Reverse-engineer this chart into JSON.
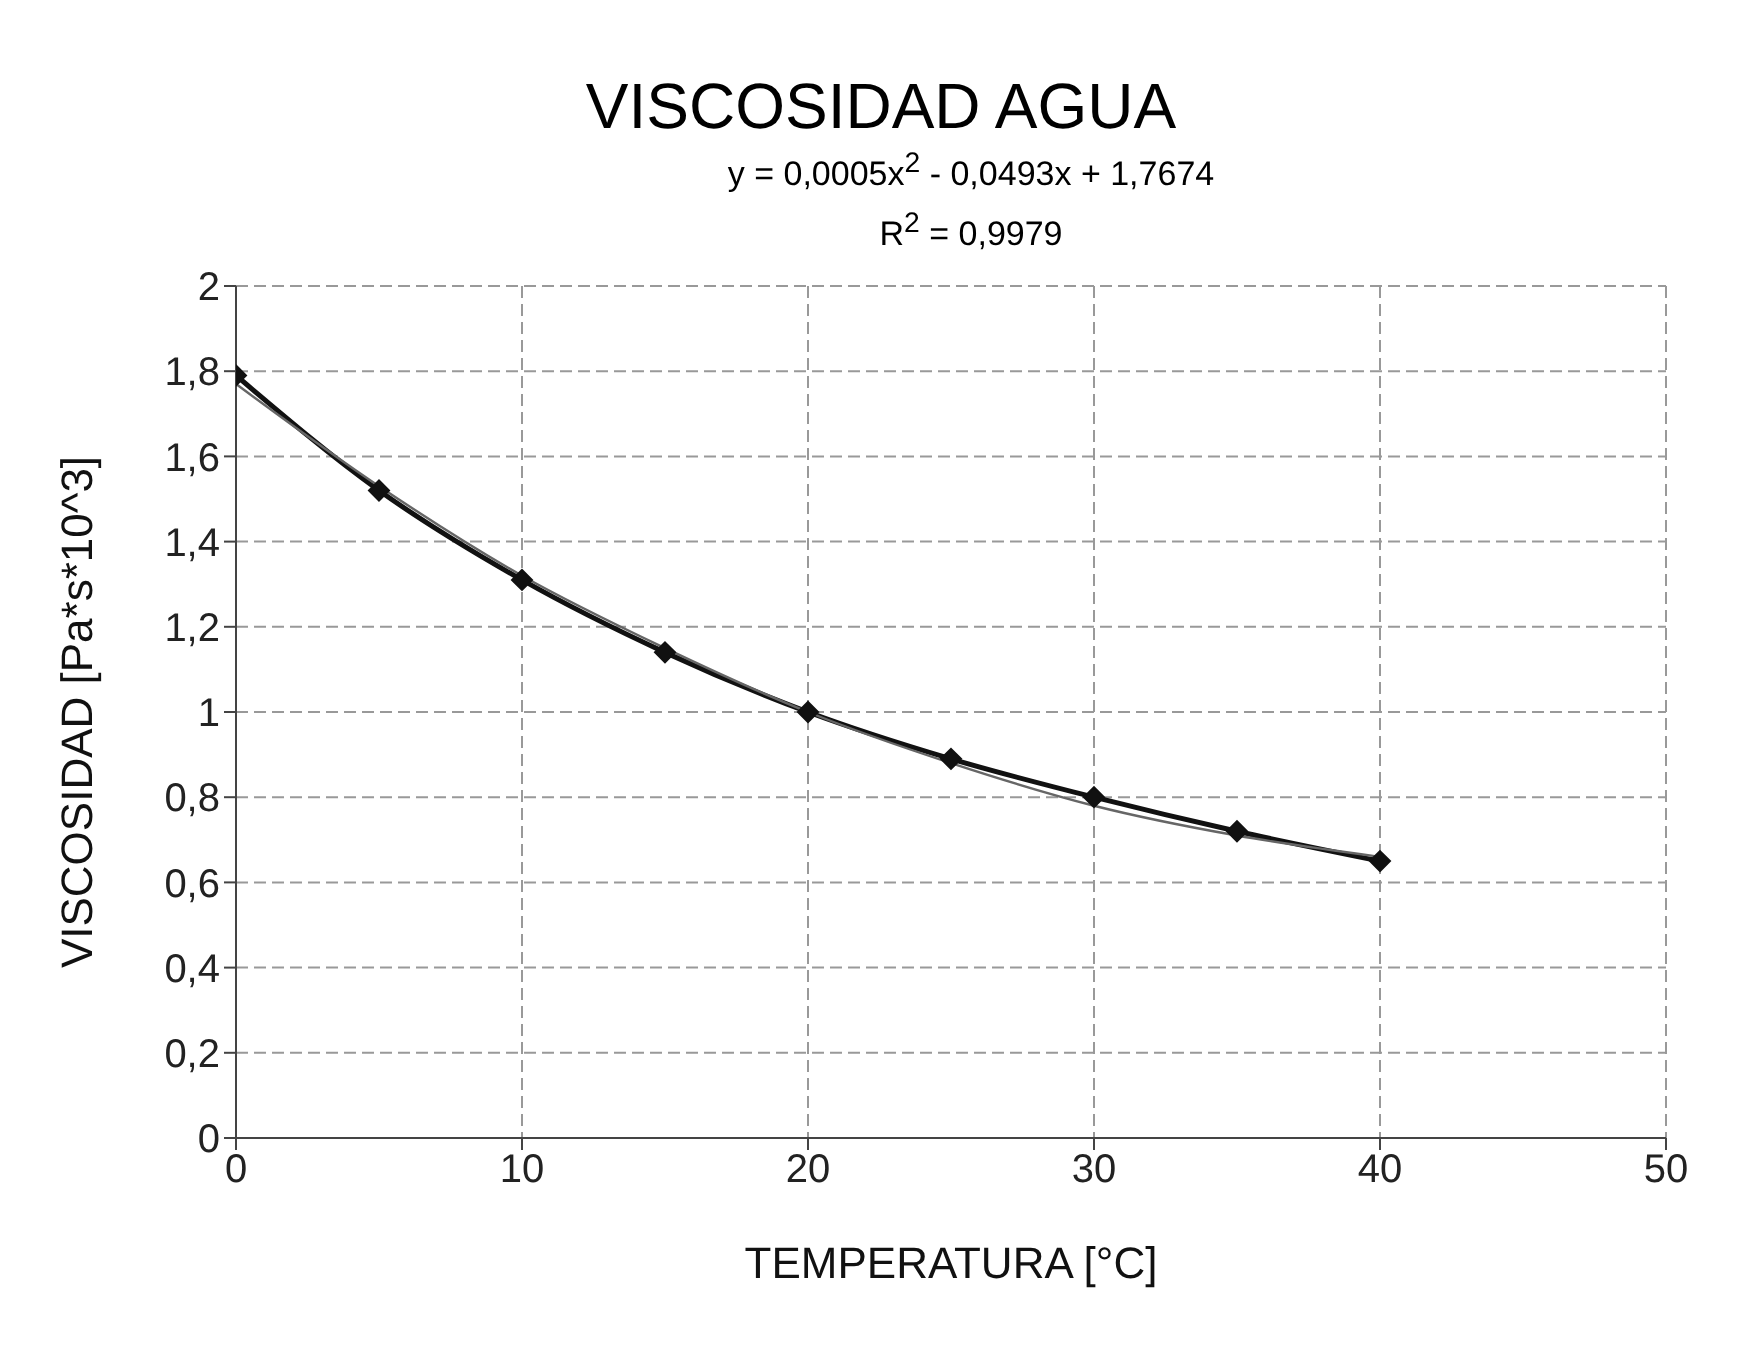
{
  "chart_data": {
    "type": "line",
    "title": "VISCOSIDAD AGUA",
    "annotations": [
      "y = 0,0005x$^{2}$ - 0,0493x + 1,7674",
      "R$^{2}$ = 0,9979"
    ],
    "xlabel": "TEMPERATURA [°C]",
    "ylabel": "VISCOSIDAD [Pa*s*10^3]",
    "x": [
      0,
      5,
      10,
      15,
      20,
      25,
      30,
      35,
      40
    ],
    "series": [
      {
        "color": "#111111",
        "values": [
          1.79,
          1.52,
          1.31,
          1.14,
          1.0,
          0.89,
          0.8,
          0.72,
          0.65
        ],
        "marker": "diamond",
        "line_style": "solid"
      },
      {
        "type": "line",
        "color": "#666666",
        "x": [
          0,
          5,
          10,
          15,
          20,
          25,
          30,
          35,
          40
        ],
        "values": [
          1.77,
          1.53,
          1.32,
          1.15,
          1.0,
          0.88,
          0.78,
          0.71,
          0.66
        ],
        "marker": "none",
        "line_style": "solid"
      }
    ],
    "xlim": [
      0,
      50
    ],
    "xticks": [
      0,
      10,
      20,
      30,
      40,
      50
    ],
    "ylim": [
      0,
      2
    ],
    "yticks": [
      0,
      {
        "value": 0.2,
        "label": "0,2"
      },
      {
        "value": 0.4,
        "label": "0,4"
      },
      {
        "value": 0.6,
        "label": "0,6"
      },
      {
        "value": 0.8,
        "label": "0,8"
      },
      1,
      {
        "value": 1.2,
        "label": "1,2"
      },
      {
        "value": 1.4,
        "label": "1,4"
      },
      {
        "value": 1.6,
        "label": "1,6"
      },
      {
        "value": 1.8,
        "label": "1,8"
      },
      2
    ],
    "grid": true
  }
}
